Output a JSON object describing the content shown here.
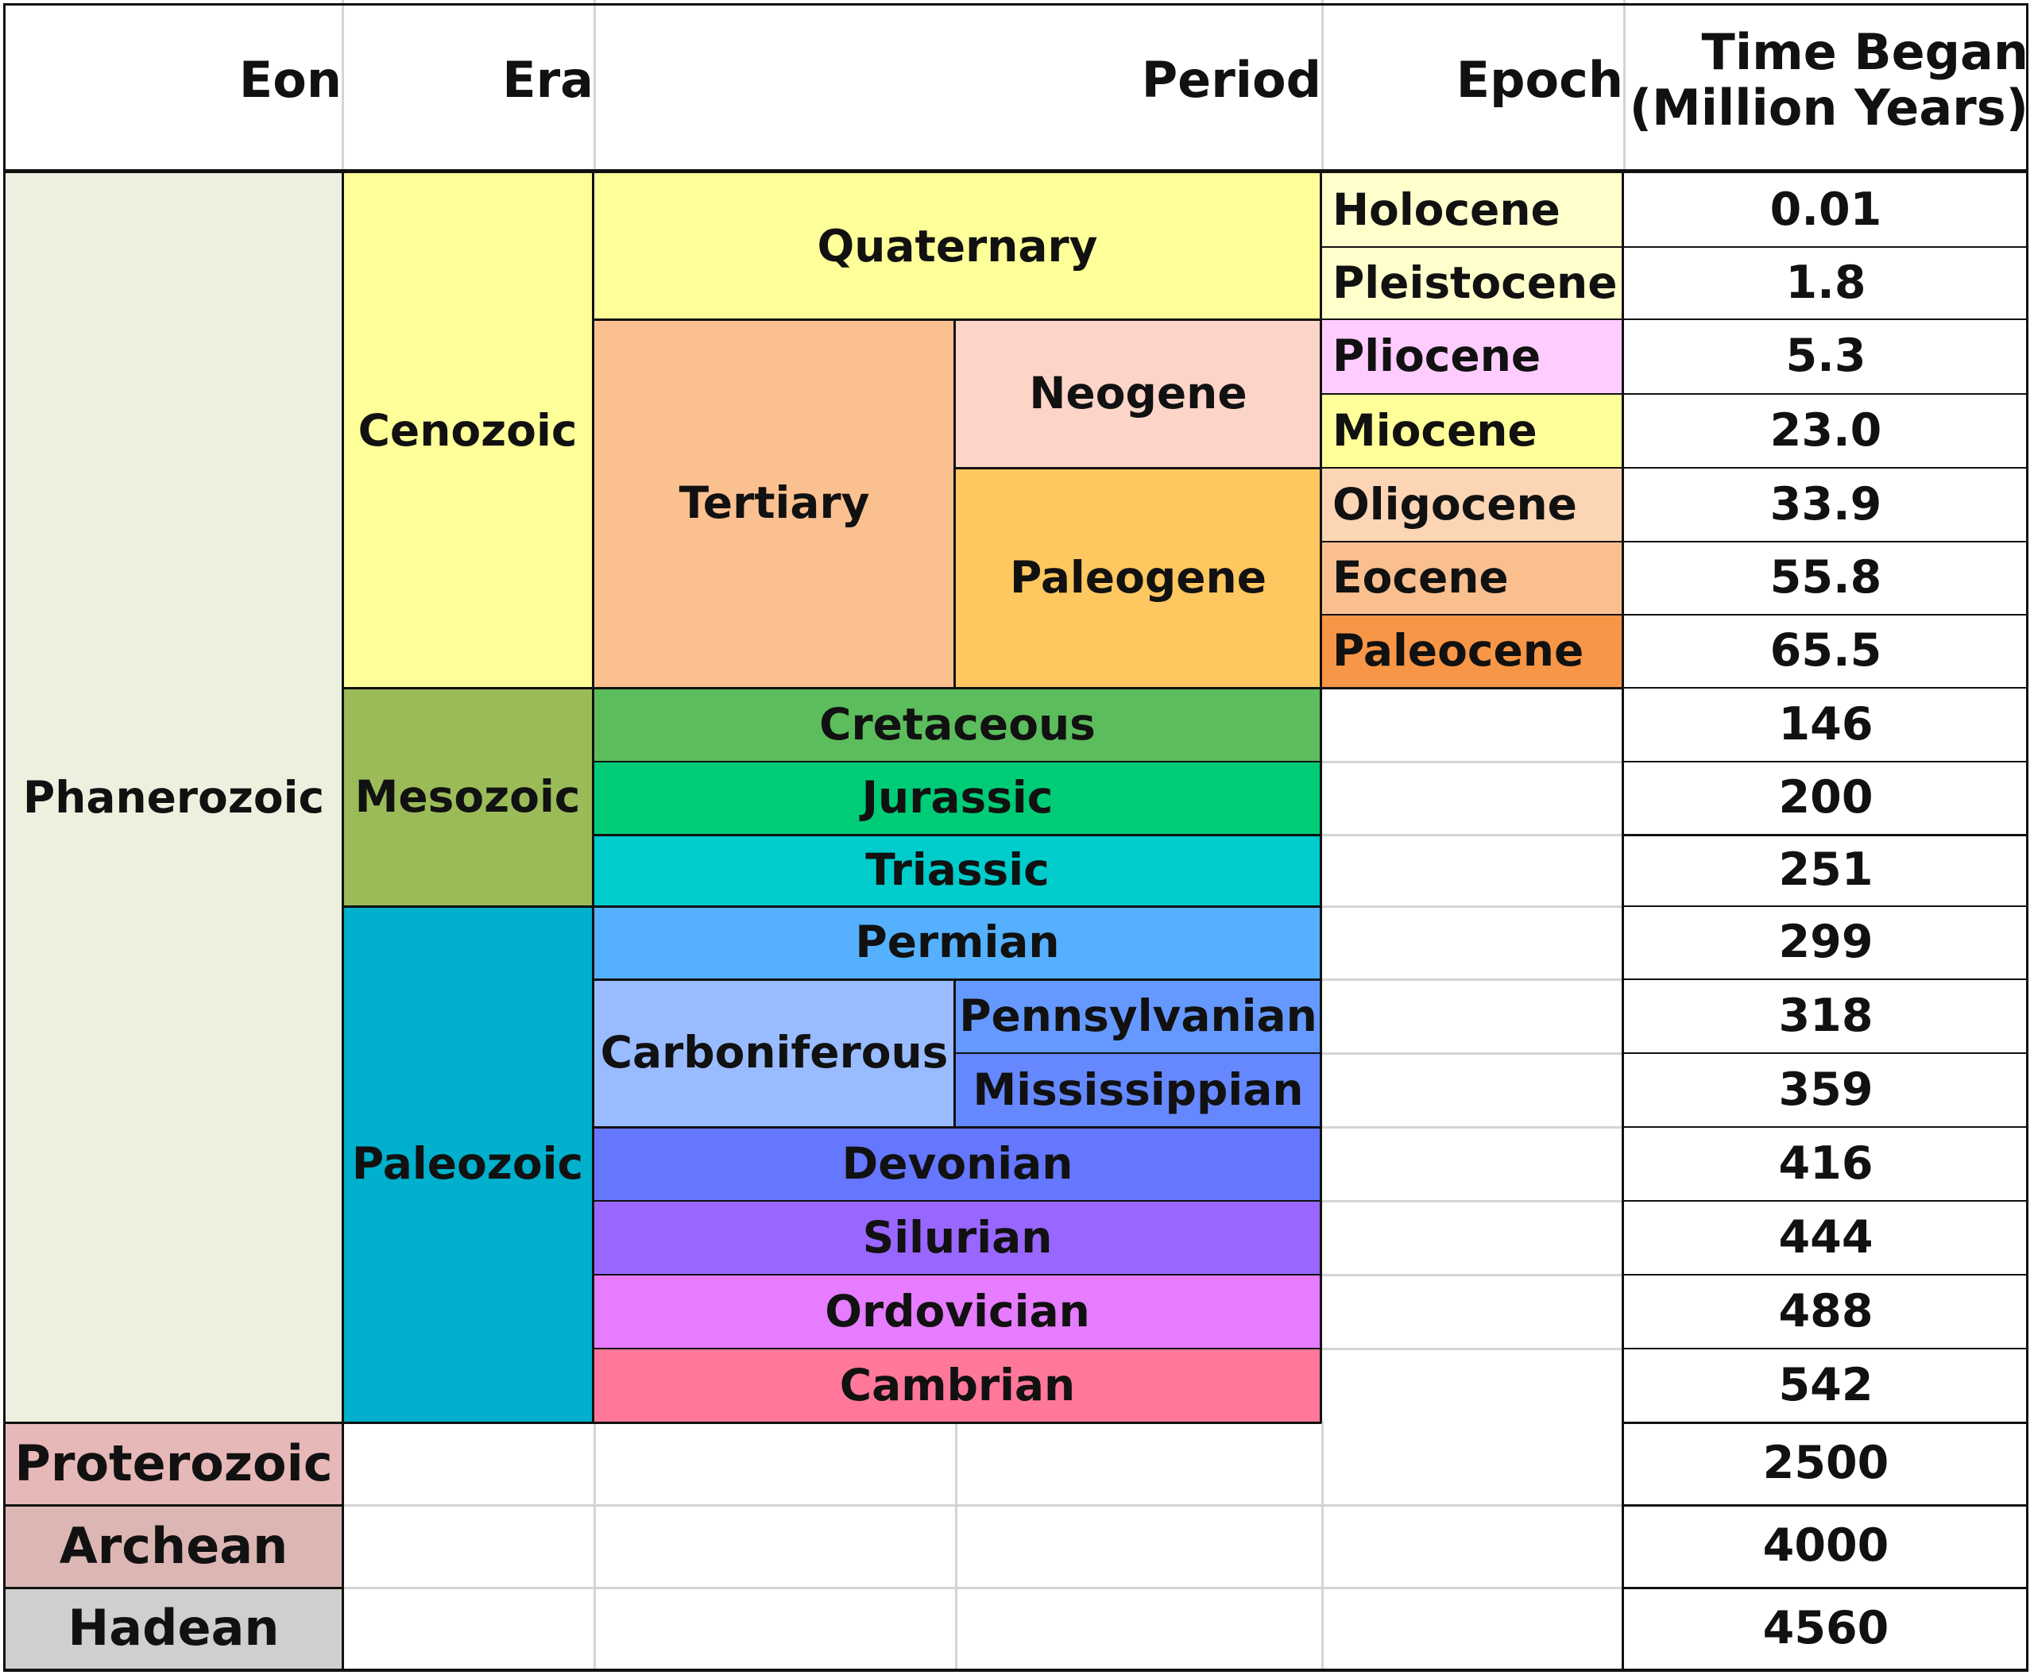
{
  "headers": {
    "eon": "Eon",
    "era": "Era",
    "period": "Period",
    "epoch": "Epoch",
    "time_line1": "Time Began",
    "time_line2": "(Million Years)"
  },
  "eons": {
    "phanerozoic": "Phanerozoic",
    "proterozoic": "Proterozoic",
    "archean": "Archean",
    "hadean": "Hadean"
  },
  "eras": {
    "cenozoic": "Cenozoic",
    "mesozoic": "Mesozoic",
    "paleozoic": "Paleozoic"
  },
  "periods": {
    "quaternary": "Quaternary",
    "tertiary": "Tertiary",
    "neogene": "Neogene",
    "paleogene": "Paleogene",
    "cretaceous": "Cretaceous",
    "jurassic": "Jurassic",
    "triassic": "Triassic",
    "permian": "Permian",
    "carboniferous": "Carboniferous",
    "pennsylvanian": "Pennsylvanian",
    "mississippian": "Mississippian",
    "devonian": "Devonian",
    "silurian": "Silurian",
    "ordovician": "Ordovician",
    "cambrian": "Cambrian"
  },
  "epochs": {
    "holocene": "Holocene",
    "pleistocene": "Pleistocene",
    "pliocene": "Pliocene",
    "miocene": "Miocene",
    "oligocene": "Oligocene",
    "eocene": "Eocene",
    "paleocene": "Paleocene"
  },
  "times": [
    "0.01",
    "1.8",
    "5.3",
    "23.0",
    "33.9",
    "55.8",
    "65.5",
    "146",
    "200",
    "251",
    "299",
    "318",
    "359",
    "416",
    "444",
    "488",
    "542",
    "2500",
    "4000",
    "4560"
  ],
  "colors": {
    "phanerozoic": "#ebf1de",
    "proterozoic": "#e6b8b7",
    "archean": "#dcb6b3",
    "hadean": "#d0cece",
    "cenozoic": "#ffff99",
    "mesozoic": "#9bbb59",
    "paleozoic": "#00b0cc",
    "quaternary": "#ffff99",
    "tertiary": "#fac090",
    "neogene": "#fcd5c8",
    "paleogene": "#ffc75f",
    "cretaceous": "#5cbd5c",
    "jurassic": "#00cc77",
    "triassic": "#00cccc",
    "permian": "#55b0ff",
    "carboniferous": "#99bbff",
    "pennsylvanian": "#6699ff",
    "mississippian": "#6688ff",
    "devonian": "#6677ff",
    "silurian": "#9966ff",
    "ordovician": "#e67cff",
    "cambrian": "#ff7799",
    "holocene": "#ffffcc",
    "pleistocene": "#ffffcc",
    "pliocene": "#ffccff",
    "miocene": "#ffff99",
    "oligocene": "#fcd5b4",
    "eocene": "#fabf8f",
    "paleocene": "#f79646"
  }
}
